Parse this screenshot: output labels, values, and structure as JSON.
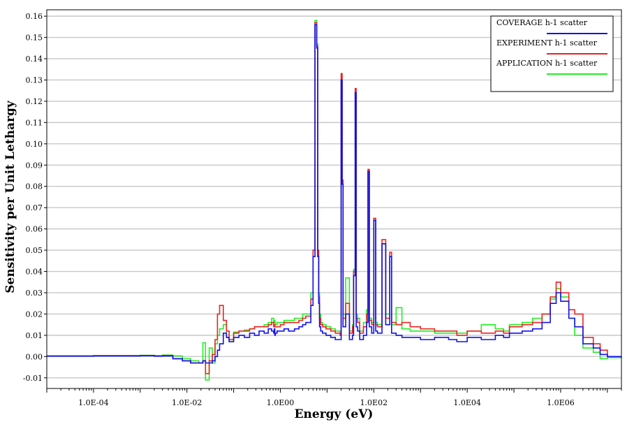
{
  "chart_data": {
    "type": "line",
    "title": "",
    "xlabel": "Energy (eV)",
    "ylabel": "Sensitivity per Unit Lethargy",
    "xscale": "log",
    "xlim": [
      1e-05,
      20000000
    ],
    "ylim": [
      -0.015,
      0.163
    ],
    "grid": "horizontal",
    "legend_position": "top-right",
    "x_ticks": [
      {
        "value": 0.0001,
        "label": "1.0E-04"
      },
      {
        "value": 0.01,
        "label": "1.0E-02"
      },
      {
        "value": 1,
        "label": "1.0E00"
      },
      {
        "value": 100,
        "label": "1.0E02"
      },
      {
        "value": 10000,
        "label": "1.0E04"
      },
      {
        "value": 1000000,
        "label": "1.0E06"
      }
    ],
    "y_ticks": [
      {
        "value": -0.01,
        "label": "-0.01"
      },
      {
        "value": 0.0,
        "label": "0.00"
      },
      {
        "value": 0.01,
        "label": "0.01"
      },
      {
        "value": 0.02,
        "label": "0.02"
      },
      {
        "value": 0.03,
        "label": "0.03"
      },
      {
        "value": 0.04,
        "label": "0.04"
      },
      {
        "value": 0.05,
        "label": "0.05"
      },
      {
        "value": 0.06,
        "label": "0.06"
      },
      {
        "value": 0.07,
        "label": "0.07"
      },
      {
        "value": 0.08,
        "label": "0.08"
      },
      {
        "value": 0.09,
        "label": "0.09"
      },
      {
        "value": 0.1,
        "label": "0.10"
      },
      {
        "value": 0.11,
        "label": "0.11"
      },
      {
        "value": 0.12,
        "label": "0.12"
      },
      {
        "value": 0.13,
        "label": "0.13"
      },
      {
        "value": 0.14,
        "label": "0.14"
      },
      {
        "value": 0.15,
        "label": "0.15"
      },
      {
        "value": 0.16,
        "label": "0.16"
      }
    ],
    "series": [
      {
        "name": "APPLICATION h-1 scatter",
        "color": "#22ee22",
        "x": [
          1e-05,
          0.0001,
          0.001,
          0.002,
          0.003,
          0.005,
          0.008,
          0.012,
          0.018,
          0.022,
          0.025,
          0.03,
          0.035,
          0.04,
          0.045,
          0.05,
          0.06,
          0.07,
          0.08,
          0.1,
          0.13,
          0.17,
          0.22,
          0.28,
          0.35,
          0.45,
          0.55,
          0.65,
          0.72,
          0.74,
          0.76,
          0.78,
          0.85,
          1.0,
          1.2,
          1.5,
          2.0,
          2.5,
          3.0,
          3.5,
          4.5,
          5.0,
          5.5,
          6.0,
          6.3,
          6.6,
          6.9,
          7.3,
          8.0,
          9.5,
          12,
          15,
          19,
          20,
          21,
          22,
          25,
          30,
          35,
          37,
          40,
          42,
          45,
          50,
          60,
          70,
          75,
          80,
          90,
          100,
          110,
          120,
          150,
          180,
          220,
          240,
          300,
          400,
          600,
          1000,
          2000,
          4000,
          6000,
          10000,
          20000,
          40000,
          60000,
          80000,
          150000,
          250000,
          400000,
          600000,
          800000,
          1000000,
          1500000,
          2000000,
          3000000,
          5000000,
          7000000,
          10000000,
          20000000
        ],
        "y": [
          0.0003,
          0.0004,
          0.0006,
          0.0004,
          0.0007,
          0.0003,
          -0.001,
          -0.002,
          -0.003,
          0.0065,
          -0.011,
          0.004,
          -0.003,
          0.006,
          0.01,
          0.013,
          0.015,
          0.009,
          0.007,
          0.0115,
          0.012,
          0.0125,
          0.013,
          0.014,
          0.014,
          0.015,
          0.016,
          0.018,
          0.016,
          0.017,
          0.016,
          0.015,
          0.016,
          0.016,
          0.017,
          0.017,
          0.018,
          0.018,
          0.02,
          0.02,
          0.03,
          0.05,
          0.158,
          0.147,
          0.05,
          0.03,
          0.02,
          0.016,
          0.015,
          0.014,
          0.013,
          0.012,
          0.011,
          0.13,
          0.082,
          0.02,
          0.037,
          0.012,
          0.015,
          0.041,
          0.12,
          0.02,
          0.018,
          0.012,
          0.016,
          0.022,
          0.087,
          0.018,
          0.016,
          0.064,
          0.016,
          0.015,
          0.053,
          0.02,
          0.047,
          0.015,
          0.023,
          0.013,
          0.012,
          0.012,
          0.011,
          0.011,
          0.011,
          0.012,
          0.015,
          0.013,
          0.012,
          0.015,
          0.016,
          0.018,
          0.02,
          0.027,
          0.032,
          0.028,
          0.018,
          0.01,
          0.004,
          0.002,
          -0.001,
          -0.0005,
          0.0
        ]
      },
      {
        "name": "EXPERIMENT h-1 scatter",
        "color": "#ee2222",
        "x": [
          1e-05,
          0.0001,
          0.001,
          0.002,
          0.003,
          0.005,
          0.008,
          0.012,
          0.018,
          0.022,
          0.025,
          0.03,
          0.035,
          0.04,
          0.045,
          0.05,
          0.06,
          0.07,
          0.08,
          0.1,
          0.13,
          0.17,
          0.22,
          0.28,
          0.35,
          0.45,
          0.55,
          0.65,
          0.72,
          0.74,
          0.76,
          0.78,
          0.85,
          1.0,
          1.2,
          1.5,
          2.0,
          2.5,
          3.0,
          3.5,
          4.5,
          5.0,
          5.5,
          6.0,
          6.3,
          6.6,
          6.9,
          7.3,
          8.0,
          9.5,
          12,
          15,
          19,
          20,
          21,
          22,
          25,
          30,
          35,
          37,
          40,
          42,
          45,
          50,
          60,
          70,
          75,
          80,
          90,
          100,
          110,
          120,
          150,
          180,
          220,
          240,
          300,
          400,
          600,
          1000,
          2000,
          4000,
          6000,
          10000,
          20000,
          40000,
          60000,
          80000,
          150000,
          250000,
          400000,
          600000,
          800000,
          1000000,
          1500000,
          2000000,
          3000000,
          5000000,
          7000000,
          10000000,
          20000000
        ],
        "y": [
          0.0003,
          0.0004,
          0.0005,
          0.0003,
          0.0005,
          -0.001,
          -0.002,
          -0.003,
          -0.003,
          -0.002,
          -0.008,
          -0.002,
          0.001,
          0.008,
          0.02,
          0.024,
          0.017,
          0.012,
          0.008,
          0.011,
          0.012,
          0.012,
          0.013,
          0.014,
          0.014,
          0.014,
          0.015,
          0.016,
          0.014,
          0.015,
          0.014,
          0.014,
          0.014,
          0.015,
          0.016,
          0.016,
          0.016,
          0.017,
          0.018,
          0.019,
          0.027,
          0.05,
          0.157,
          0.146,
          0.05,
          0.028,
          0.018,
          0.015,
          0.014,
          0.013,
          0.012,
          0.011,
          0.01,
          0.133,
          0.083,
          0.018,
          0.025,
          0.011,
          0.014,
          0.04,
          0.126,
          0.018,
          0.016,
          0.011,
          0.014,
          0.02,
          0.088,
          0.017,
          0.015,
          0.065,
          0.015,
          0.014,
          0.055,
          0.018,
          0.049,
          0.016,
          0.015,
          0.016,
          0.014,
          0.013,
          0.012,
          0.012,
          0.01,
          0.012,
          0.011,
          0.012,
          0.011,
          0.014,
          0.015,
          0.016,
          0.02,
          0.028,
          0.035,
          0.03,
          0.022,
          0.02,
          0.009,
          0.006,
          0.003,
          0.0,
          0.0
        ]
      },
      {
        "name": "COVERAGE h-1 scatter",
        "color": "#1111ee",
        "x": [
          1e-05,
          0.0001,
          0.001,
          0.002,
          0.003,
          0.005,
          0.008,
          0.012,
          0.018,
          0.022,
          0.025,
          0.03,
          0.035,
          0.04,
          0.045,
          0.05,
          0.06,
          0.07,
          0.08,
          0.1,
          0.13,
          0.17,
          0.22,
          0.28,
          0.35,
          0.45,
          0.55,
          0.65,
          0.72,
          0.74,
          0.76,
          0.78,
          0.85,
          1.0,
          1.2,
          1.5,
          2.0,
          2.5,
          3.0,
          3.5,
          4.5,
          5.0,
          5.5,
          6.0,
          6.3,
          6.6,
          6.9,
          7.3,
          8.0,
          9.5,
          12,
          15,
          19,
          20,
          21,
          22,
          25,
          30,
          35,
          37,
          40,
          42,
          45,
          50,
          60,
          70,
          75,
          80,
          90,
          100,
          110,
          120,
          150,
          180,
          220,
          240,
          300,
          400,
          600,
          1000,
          2000,
          4000,
          6000,
          10000,
          20000,
          40000,
          60000,
          80000,
          150000,
          250000,
          400000,
          600000,
          800000,
          1000000,
          1500000,
          2000000,
          3000000,
          5000000,
          7000000,
          10000000,
          20000000
        ],
        "y": [
          0.0002,
          0.0003,
          0.0004,
          0.0002,
          0.0003,
          -0.001,
          -0.002,
          -0.003,
          -0.003,
          -0.002,
          -0.003,
          -0.003,
          -0.002,
          0.0,
          0.003,
          0.006,
          0.011,
          0.009,
          0.007,
          0.009,
          0.01,
          0.009,
          0.011,
          0.01,
          0.012,
          0.011,
          0.013,
          0.012,
          0.011,
          0.013,
          0.01,
          0.011,
          0.012,
          0.012,
          0.013,
          0.012,
          0.013,
          0.014,
          0.015,
          0.016,
          0.024,
          0.047,
          0.156,
          0.145,
          0.047,
          0.025,
          0.014,
          0.012,
          0.011,
          0.01,
          0.009,
          0.008,
          0.008,
          0.13,
          0.081,
          0.014,
          0.02,
          0.008,
          0.01,
          0.038,
          0.124,
          0.014,
          0.012,
          0.008,
          0.01,
          0.016,
          0.087,
          0.014,
          0.011,
          0.064,
          0.012,
          0.011,
          0.053,
          0.015,
          0.047,
          0.011,
          0.01,
          0.009,
          0.009,
          0.008,
          0.009,
          0.008,
          0.007,
          0.009,
          0.008,
          0.01,
          0.009,
          0.011,
          0.012,
          0.013,
          0.016,
          0.025,
          0.03,
          0.026,
          0.018,
          0.014,
          0.006,
          0.004,
          0.001,
          0.0,
          0.0
        ]
      }
    ]
  }
}
